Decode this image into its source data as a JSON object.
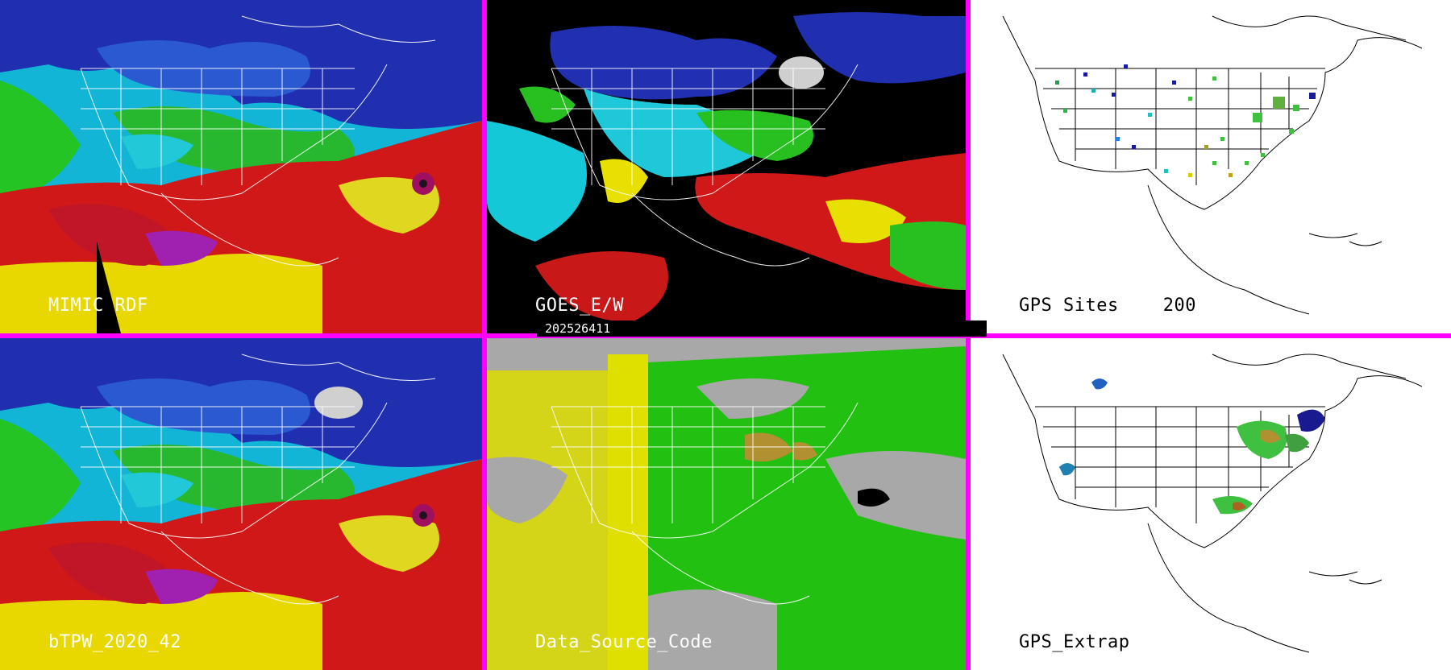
{
  "timestamp": "202526411",
  "panels": [
    {
      "id": "mimic",
      "label": "MIMIC RDF"
    },
    {
      "id": "goes",
      "label": "GOES_E/W"
    },
    {
      "id": "gps-sites",
      "label": "GPS Sites",
      "count": "200"
    },
    {
      "id": "btpw",
      "label": "bTPW_2020_42"
    },
    {
      "id": "data-source",
      "label": "Data_Source_Code"
    },
    {
      "id": "gps-extrap",
      "label": "GPS_Extrap"
    }
  ],
  "colors": {
    "background_border": "#ff00ff",
    "dry": "#1f2fb0",
    "cyan": "#15c9d8",
    "green": "#1fcf1f",
    "yellow": "#e8e000",
    "red": "#d01818",
    "magenta": "#b020c0",
    "source_yellow": "#dcdc00",
    "source_green": "#22c010",
    "source_gray": "#a8a8a8"
  }
}
